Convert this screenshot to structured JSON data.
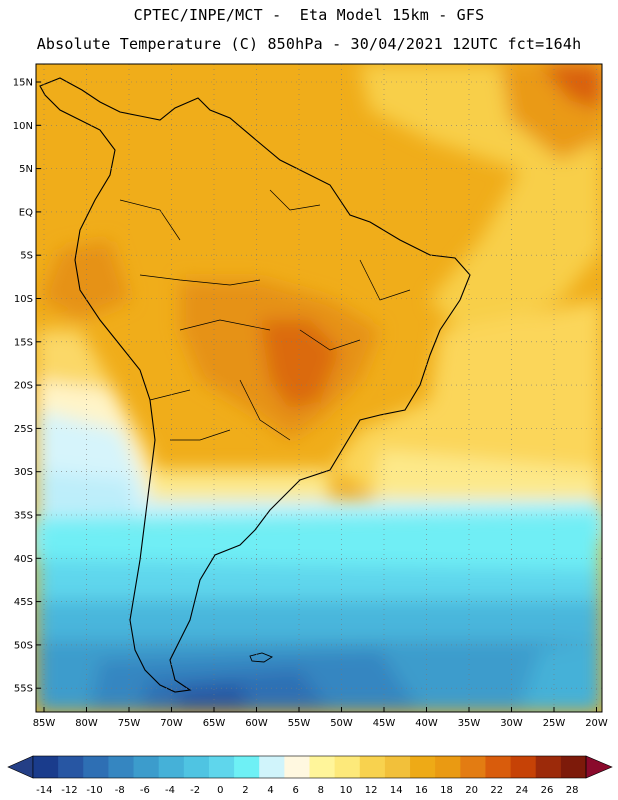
{
  "header": {
    "line1": "CPTEC/INPE/MCT -  Eta Model 15km - GFS",
    "line2": "Absolute Temperature (C) 850hPa - 30/04/2021 12UTC fct=164h"
  },
  "map": {
    "lat_labels": [
      "15N",
      "10N",
      "5N",
      "EQ",
      "5S",
      "10S",
      "15S",
      "20S",
      "25S",
      "30S",
      "35S",
      "40S",
      "45S",
      "50S",
      "55S"
    ],
    "lon_labels": [
      "85W",
      "80W",
      "75W",
      "70W",
      "65W",
      "60W",
      "55W",
      "50W",
      "45W",
      "40W",
      "35W",
      "30W",
      "25W",
      "20W"
    ]
  },
  "colorbar": {
    "labels": [
      "-14",
      "-12",
      "-10",
      "-8",
      "-6",
      "-4",
      "-2",
      "0",
      "2",
      "4",
      "6",
      "8",
      "10",
      "12",
      "14",
      "16",
      "18",
      "20",
      "22",
      "24",
      "26",
      "28"
    ],
    "colors": [
      "#1a3c8c",
      "#2756a3",
      "#2e6fb4",
      "#3586c1",
      "#3c9ccc",
      "#45b1d8",
      "#4fc4e2",
      "#5fd6ec",
      "#6ef0f5",
      "#d0f4fb",
      "#fff8e0",
      "#fff59a",
      "#fde97a",
      "#f8d24e",
      "#f2c03a",
      "#eeaa16",
      "#ea9a12",
      "#e37c12",
      "#d95c0c",
      "#c64206",
      "#9c2a0a",
      "#7d1a0a"
    ],
    "below_color": "#243f86",
    "above_color": "#8a0a2c"
  }
}
